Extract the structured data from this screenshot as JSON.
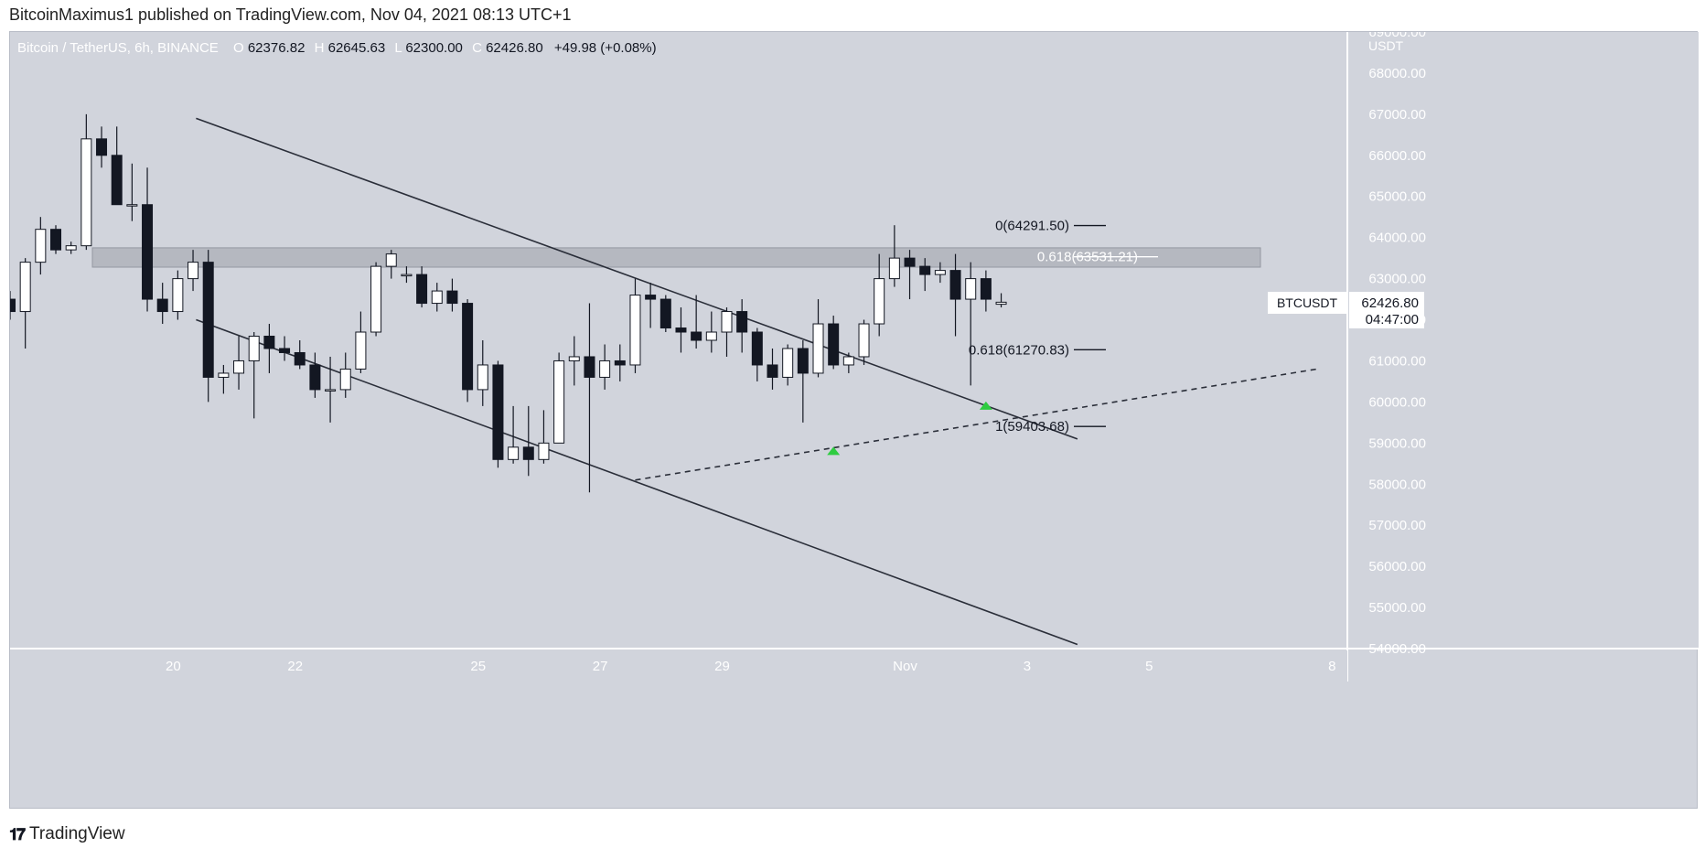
{
  "publisher": "BitcoinMaximus1 published on TradingView.com, Nov 04, 2021 08:13 UTC+1",
  "footer_brand": "TradingView",
  "symbol_line": {
    "name": "Bitcoin / TetherUS, 6h, BINANCE",
    "open_label": "O",
    "open": "62376.82",
    "high_label": "H",
    "high": "62645.63",
    "low_label": "L",
    "low": "62300.00",
    "close_label": "C",
    "close": "62426.80",
    "change": "+49.98 (+0.08%)"
  },
  "price_axis": {
    "currency": "USDT",
    "symbol_tag": "BTCUSDT",
    "last_price": "62426.80",
    "countdown": "04:47:00"
  },
  "colors": {
    "background": "#d1d4dc",
    "up_body": "#ffffff",
    "down_body": "#131722",
    "wick": "#131722",
    "zone": "#b2b5be",
    "marker": "#2ecc40"
  },
  "chart_data": {
    "type": "candlestick",
    "title": "Bitcoin / TetherUS, 6h, BINANCE",
    "interval": "6h",
    "ylim": [
      54000,
      69000
    ],
    "y_ticks": [
      54000,
      55000,
      56000,
      57000,
      58000,
      59000,
      60000,
      61000,
      62000,
      63000,
      64000,
      65000,
      66000,
      67000,
      68000,
      69000
    ],
    "x_tick_labels": [
      {
        "label": "20",
        "x": 14.7
      },
      {
        "label": "22",
        "x": 22.7
      },
      {
        "label": "25",
        "x": 34.7
      },
      {
        "label": "27",
        "x": 42.7
      },
      {
        "label": "29",
        "x": 50.7
      },
      {
        "label": "Nov",
        "x": 62.7
      },
      {
        "label": "3",
        "x": 70.7
      },
      {
        "label": "5",
        "x": 78.7
      },
      {
        "label": "8",
        "x": 90.7
      }
    ],
    "candles": [
      [
        62500,
        62600,
        60900,
        61000
      ],
      [
        61000,
        62000,
        59800,
        61800
      ],
      [
        61800,
        62100,
        61200,
        62100
      ],
      [
        62100,
        62500,
        61600,
        62500
      ],
      [
        62500,
        62700,
        62000,
        62200
      ],
      [
        62200,
        63500,
        61300,
        63400
      ],
      [
        63400,
        64500,
        63100,
        64200
      ],
      [
        64200,
        64300,
        63600,
        63700
      ],
      [
        63700,
        63900,
        63600,
        63800
      ],
      [
        63800,
        67000,
        63700,
        66400
      ],
      [
        66400,
        66700,
        65700,
        66000
      ],
      [
        66000,
        66700,
        64800,
        64800
      ],
      [
        64800,
        65800,
        64400,
        64800
      ],
      [
        64800,
        65700,
        62200,
        62500
      ],
      [
        62500,
        62900,
        61900,
        62200
      ],
      [
        62200,
        63200,
        62000,
        63000
      ],
      [
        63000,
        63700,
        62700,
        63400
      ],
      [
        63400,
        63700,
        60000,
        60600
      ],
      [
        60600,
        60900,
        60200,
        60700
      ],
      [
        60700,
        61600,
        60300,
        61000
      ],
      [
        61000,
        61700,
        59600,
        61600
      ],
      [
        61600,
        61900,
        60700,
        61300
      ],
      [
        61300,
        61600,
        61000,
        61200
      ],
      [
        61200,
        61500,
        60800,
        60900
      ],
      [
        60900,
        61200,
        60100,
        60300
      ],
      [
        60300,
        61100,
        59500,
        60300
      ],
      [
        60300,
        61200,
        60100,
        60800
      ],
      [
        60800,
        62200,
        60700,
        61700
      ],
      [
        61700,
        63400,
        61600,
        63300
      ],
      [
        63300,
        63700,
        63000,
        63600
      ],
      [
        63100,
        63300,
        62900,
        63100
      ],
      [
        63100,
        63300,
        62300,
        62400
      ],
      [
        62400,
        62900,
        62200,
        62700
      ],
      [
        62700,
        63000,
        62200,
        62400
      ],
      [
        62400,
        62500,
        60000,
        60300
      ],
      [
        60300,
        61500,
        59900,
        60900
      ],
      [
        60900,
        61000,
        58400,
        58600
      ],
      [
        58600,
        59900,
        58500,
        58900
      ],
      [
        58900,
        59900,
        58200,
        58600
      ],
      [
        58600,
        59800,
        58500,
        59000
      ],
      [
        59000,
        61200,
        59000,
        61000
      ],
      [
        61000,
        61600,
        60400,
        61100
      ],
      [
        61100,
        62400,
        57800,
        60600
      ],
      [
        60600,
        61400,
        60300,
        61000
      ],
      [
        61000,
        61400,
        60500,
        60900
      ],
      [
        60900,
        63000,
        60700,
        62600
      ],
      [
        62600,
        62900,
        61800,
        62500
      ],
      [
        62500,
        62600,
        61700,
        61800
      ],
      [
        61800,
        62300,
        61200,
        61700
      ],
      [
        61700,
        62600,
        61300,
        61500
      ],
      [
        61500,
        62200,
        61200,
        61700
      ],
      [
        61700,
        62300,
        61100,
        62200
      ],
      [
        62200,
        62500,
        61200,
        61700
      ],
      [
        61700,
        61800,
        60500,
        60900
      ],
      [
        60900,
        61300,
        60300,
        60600
      ],
      [
        60600,
        61400,
        60400,
        61300
      ],
      [
        61300,
        61500,
        59500,
        60700
      ],
      [
        60700,
        62500,
        60600,
        61900
      ],
      [
        61900,
        62100,
        60800,
        60900
      ],
      [
        60900,
        61200,
        60700,
        61100
      ],
      [
        61100,
        62000,
        60900,
        61900
      ],
      [
        61900,
        63600,
        61600,
        63000
      ],
      [
        63000,
        64300,
        62800,
        63500
      ],
      [
        63500,
        63700,
        62500,
        63300
      ],
      [
        63300,
        63500,
        62700,
        63100
      ],
      [
        63100,
        63400,
        62900,
        63200
      ],
      [
        63200,
        63600,
        61600,
        62500
      ],
      [
        62500,
        63400,
        60400,
        63000
      ],
      [
        63000,
        63200,
        62200,
        62500
      ],
      [
        62376.82,
        62645.63,
        62300.0,
        62426.8
      ]
    ],
    "resistance_zone": [
      63280,
      63750
    ],
    "lines": [
      {
        "name": "channel-upper",
        "style": "solid",
        "from": [
          16.2,
          66900
        ],
        "to": [
          74.0,
          59100
        ]
      },
      {
        "name": "channel-lower",
        "style": "solid",
        "from": [
          16.2,
          62000
        ],
        "to": [
          74.0,
          54100
        ]
      },
      {
        "name": "ascending-support",
        "style": "dashed",
        "from": [
          45.0,
          58100
        ],
        "to": [
          89.7,
          60800
        ]
      }
    ],
    "fib_levels": [
      {
        "label": "0(64291.50)",
        "value": 64291.5
      },
      {
        "label": "0.618(63531.21)",
        "value": 63531.21
      },
      {
        "label": "0.618(61270.83)",
        "value": 61270.83
      },
      {
        "label": "1(59403.68)",
        "value": 59403.68
      }
    ],
    "markers": [
      {
        "name": "bounce-marker-1",
        "x": 58.0,
        "y": 59000
      },
      {
        "name": "bounce-marker-2",
        "x": 68.0,
        "y": 60100
      }
    ]
  }
}
